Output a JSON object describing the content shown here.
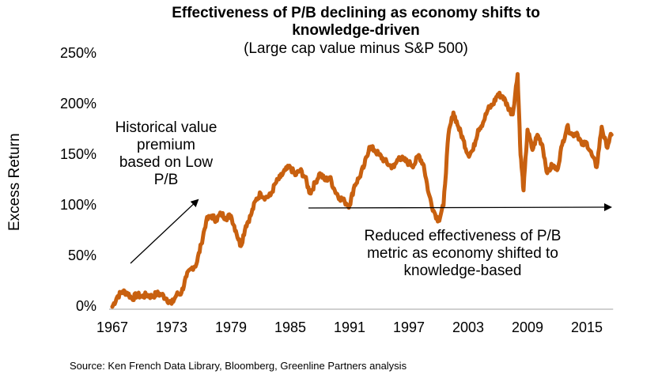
{
  "chart_data": {
    "type": "line",
    "title": "Effectiveness of P/B declining as economy shifts to knowledge-driven",
    "subtitle": "(Large cap value minus S&P 500)",
    "xlabel": "",
    "ylabel": "Excess Return",
    "ylim": [
      0,
      250
    ],
    "xlim": [
      1967,
      2017.5
    ],
    "grid": false,
    "legend": "none",
    "ytick_labels": [
      "0%",
      "50%",
      "100%",
      "150%",
      "200%",
      "250%"
    ],
    "ytick_values": [
      0,
      50,
      100,
      150,
      200,
      250
    ],
    "xtick_labels": [
      "1967",
      "1973",
      "1979",
      "1985",
      "1991",
      "1997",
      "2003",
      "2009",
      "2015"
    ],
    "xtick_values": [
      1967,
      1973,
      1979,
      1985,
      1991,
      1997,
      2003,
      2009,
      2015
    ],
    "line_color": "#C8600F",
    "series": [
      {
        "name": "Large cap value minus S&P 500",
        "x": [
          1967,
          1967.5,
          1968,
          1968.5,
          1969,
          1969.5,
          1970,
          1970.5,
          1971,
          1971.5,
          1972,
          1972.5,
          1973,
          1973.5,
          1974,
          1974.5,
          1975,
          1975.5,
          1976,
          1976.5,
          1977,
          1977.5,
          1978,
          1978.5,
          1979,
          1979.5,
          1980,
          1980.5,
          1981,
          1981.5,
          1982,
          1982.5,
          1983,
          1983.5,
          1984,
          1984.5,
          1985,
          1985.5,
          1986,
          1986.5,
          1987,
          1987.5,
          1988,
          1988.5,
          1989,
          1989.5,
          1990,
          1990.5,
          1991,
          1991.5,
          1992,
          1992.5,
          1993,
          1993.5,
          1994,
          1994.5,
          1995,
          1995.5,
          1996,
          1996.5,
          1997,
          1997.5,
          1998,
          1998.5,
          1999,
          1999.5,
          2000,
          2000.5,
          2001,
          2001.5,
          2002,
          2002.5,
          2003,
          2003.5,
          2004,
          2004.5,
          2005,
          2005.5,
          2006,
          2006.5,
          2007,
          2007.5,
          2008,
          2008.3,
          2008.6,
          2009,
          2009.5,
          2010,
          2010.5,
          2011,
          2011.5,
          2012,
          2012.5,
          2013,
          2013.5,
          2014,
          2014.5,
          2015,
          2015.5,
          2016,
          2016.5,
          2017,
          2017.5
        ],
        "y": [
          0,
          10,
          15,
          14,
          8,
          12,
          10,
          12,
          10,
          13,
          12,
          8,
          3,
          12,
          14,
          30,
          38,
          42,
          62,
          85,
          90,
          86,
          92,
          88,
          90,
          75,
          60,
          80,
          90,
          105,
          112,
          108,
          110,
          122,
          128,
          135,
          138,
          130,
          135,
          128,
          112,
          122,
          132,
          125,
          128,
          115,
          108,
          104,
          100,
          120,
          128,
          140,
          158,
          155,
          150,
          145,
          140,
          138,
          148,
          145,
          142,
          140,
          150,
          140,
          112,
          95,
          85,
          100,
          170,
          192,
          178,
          165,
          150,
          155,
          175,
          182,
          195,
          200,
          210,
          208,
          198,
          190,
          230,
          150,
          115,
          175,
          155,
          170,
          160,
          132,
          140,
          135,
          160,
          178,
          170,
          172,
          160,
          162,
          150,
          138,
          178,
          158,
          170
        ]
      }
    ],
    "annotations": [
      {
        "text": "Historical value premium based on Low P/B",
        "lines": [
          "Historical value",
          "premium",
          "based on Low",
          "P/B"
        ],
        "arrow": "diagonal up-right"
      },
      {
        "text": "Reduced effectiveness of P/B metric as economy shifted to knowledge-based",
        "lines": [
          "Reduced effectiveness of P/B",
          "metric as economy shifted to",
          "knowledge-based"
        ],
        "arrow": "horizontal right"
      }
    ],
    "source": "Source: Ken French Data Library, Bloomberg, Greenline Partners analysis"
  }
}
